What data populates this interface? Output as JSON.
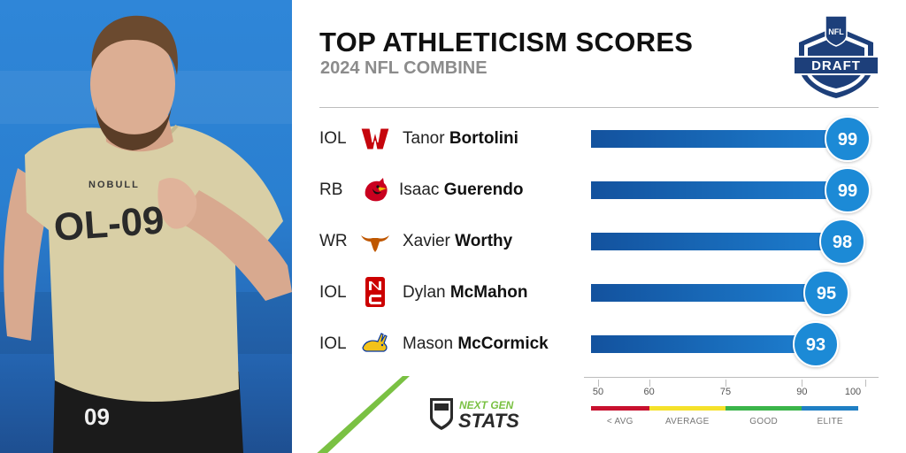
{
  "header": {
    "title": "TOP ATHLETICISM SCORES",
    "subtitle": "2024 NFL COMBINE",
    "logo_text_nfl": "NFL",
    "logo_text_draft": "DRAFT"
  },
  "photo": {
    "jersey_number": "OL-09",
    "jersey_brand": "NOBULL",
    "shorts_number": "09"
  },
  "chart_data": {
    "type": "bar",
    "xlim": [
      50,
      100
    ],
    "categories": [
      "Tanor Bortolini",
      "Isaac Guerendo",
      "Xavier Worthy",
      "Dylan McMahon",
      "Mason McCormick"
    ],
    "values": [
      99,
      99,
      98,
      95,
      93
    ],
    "rows": [
      {
        "position": "IOL",
        "first_name": "Tanor",
        "last_name": "Bortolini",
        "team_logo": "wisconsin-w-logo",
        "score": 99
      },
      {
        "position": "RB",
        "first_name": "Isaac",
        "last_name": "Guerendo",
        "team_logo": "louisville-cardinal-logo",
        "score": 99
      },
      {
        "position": "WR",
        "first_name": "Xavier",
        "last_name": "Worthy",
        "team_logo": "texas-longhorn-logo",
        "score": 98
      },
      {
        "position": "IOL",
        "first_name": "Dylan",
        "last_name": "McMahon",
        "team_logo": "nc-state-logo",
        "score": 95
      },
      {
        "position": "IOL",
        "first_name": "Mason",
        "last_name": "McCormick",
        "team_logo": "south-dakota-state-jackrabbit-logo",
        "score": 93
      }
    ],
    "legend": {
      "ticks": [
        "50",
        "60",
        "75",
        "90",
        "100"
      ],
      "tick_values": [
        50,
        60,
        75,
        90,
        100
      ],
      "segments": [
        {
          "label": "< AVG",
          "from": 50,
          "to": 60,
          "color": "#c8102e"
        },
        {
          "label": "AVERAGE",
          "from": 60,
          "to": 75,
          "color": "#f5e12a"
        },
        {
          "label": "GOOD",
          "from": 75,
          "to": 90,
          "color": "#3bb54a"
        },
        {
          "label": "ELITE",
          "from": 90,
          "to": 100,
          "color": "#1f7fc4"
        }
      ]
    }
  },
  "footer": {
    "ngs_top": "NEXT GEN",
    "ngs_bottom": "STATS"
  },
  "colors": {
    "bar_start": "#13529e",
    "bar_end": "#1d7fd0",
    "badge": "#1f8ad6",
    "accent_green": "#7ac143"
  }
}
